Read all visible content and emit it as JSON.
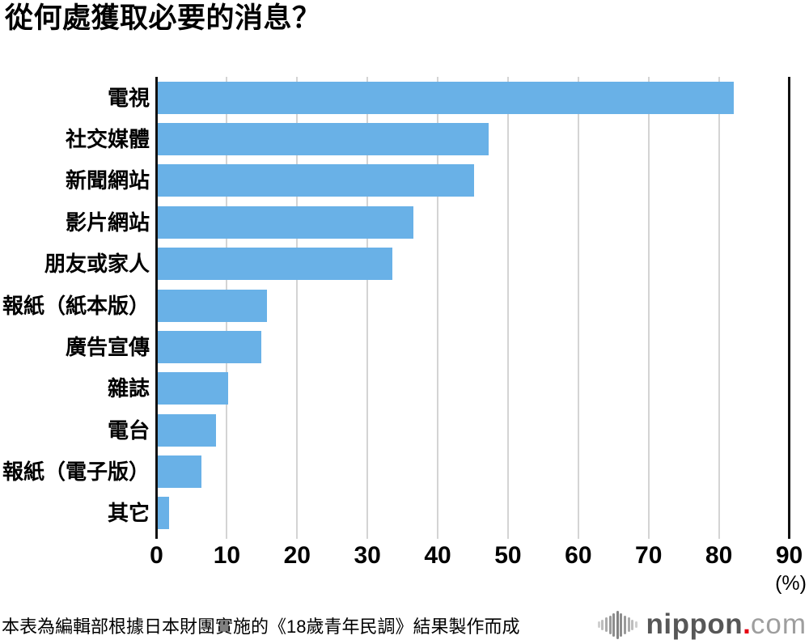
{
  "title": "從何處獲取必要的消息？",
  "chart_data": {
    "type": "bar",
    "orientation": "horizontal",
    "title": "從何處獲取必要的消息？",
    "categories": [
      "電視",
      "社交媒體",
      "新聞網站",
      "影片網站",
      "朋友或家人",
      "報紙（紙本版）",
      "廣告宣傳",
      "雜誌",
      "電台",
      "報紙（電子版）",
      "其它"
    ],
    "values": [
      82.1,
      47.3,
      45.2,
      36.5,
      33.5,
      15.7,
      14.9,
      10.2,
      8.5,
      6.4,
      1.8
    ],
    "xlabel": "(%)",
    "xlim": [
      0,
      90
    ],
    "xticks": [
      0,
      10,
      20,
      30,
      40,
      50,
      60,
      70,
      80,
      90
    ],
    "grid": true,
    "legend": false,
    "bar_color": "#69b1e7",
    "gridline_color": "#d4d4d4",
    "axis_color": "#111111"
  },
  "footer": {
    "source_note": "本表為編輯部根據日本財團實施的《18歲青年民調》結果製作而成",
    "logo": {
      "icon": "soundwave-icon",
      "brand": "nippon",
      "dot": ".",
      "tld": "com",
      "brand_color": "#575757",
      "dot_color": "#e60012",
      "tld_color": "#9e9e9e"
    }
  }
}
